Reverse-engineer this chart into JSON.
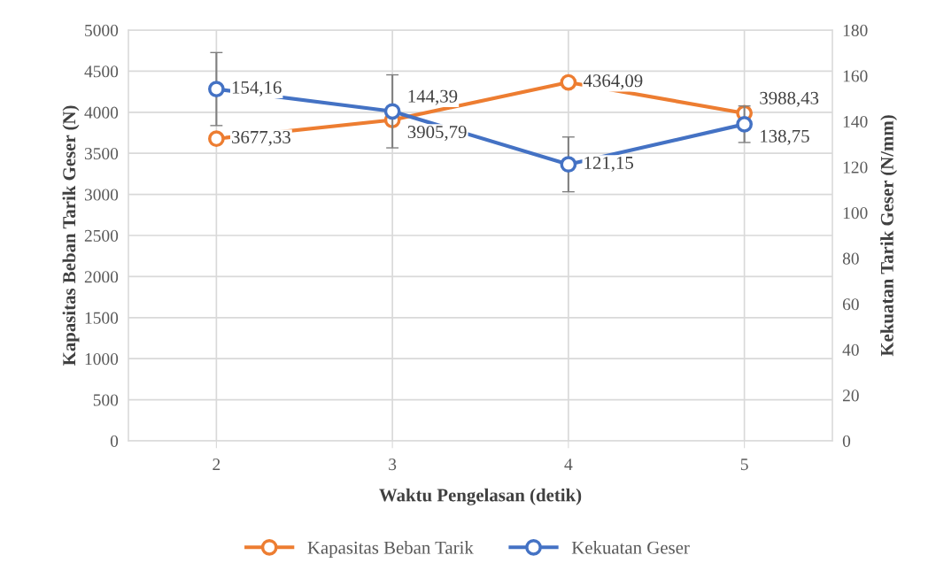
{
  "chart_data": {
    "type": "line",
    "xlabel": "Waktu Pengelasan (detik)",
    "ylabel": "Kapasitas Beban Tarik Geser (N)",
    "y2label": "Kekuatan Tarik Geser (N/mm)",
    "categories": [
      "2",
      "3",
      "4",
      "5"
    ],
    "series": [
      {
        "name": "Kapasitas Beban Tarik",
        "color": "#ed7d31",
        "values": [
          3677.33,
          3905.79,
          4364.09,
          3988.43
        ],
        "value_labels": [
          "3677,33",
          "3905,79",
          "4364,09",
          "3988,43"
        ]
      },
      {
        "name": "Kekuatan Geser",
        "color": "#4472c4",
        "values": [
          154.16,
          144.39,
          121.15,
          138.75
        ],
        "axis": "y2",
        "errors": [
          16,
          16,
          12,
          8
        ],
        "value_labels": [
          "154,16",
          "144,39",
          "121,15",
          "138,75"
        ]
      }
    ],
    "ylim": [
      0,
      5000
    ],
    "yticks": [
      0,
      500,
      1000,
      1500,
      2000,
      2500,
      3000,
      3500,
      4000,
      4500,
      5000
    ],
    "y2lim": [
      0,
      180
    ],
    "y2ticks": [
      0,
      20,
      40,
      60,
      80,
      100,
      120,
      140,
      160,
      180
    ],
    "grid": true,
    "legend": "bottom",
    "marker": "circle",
    "line_style": "solid"
  }
}
